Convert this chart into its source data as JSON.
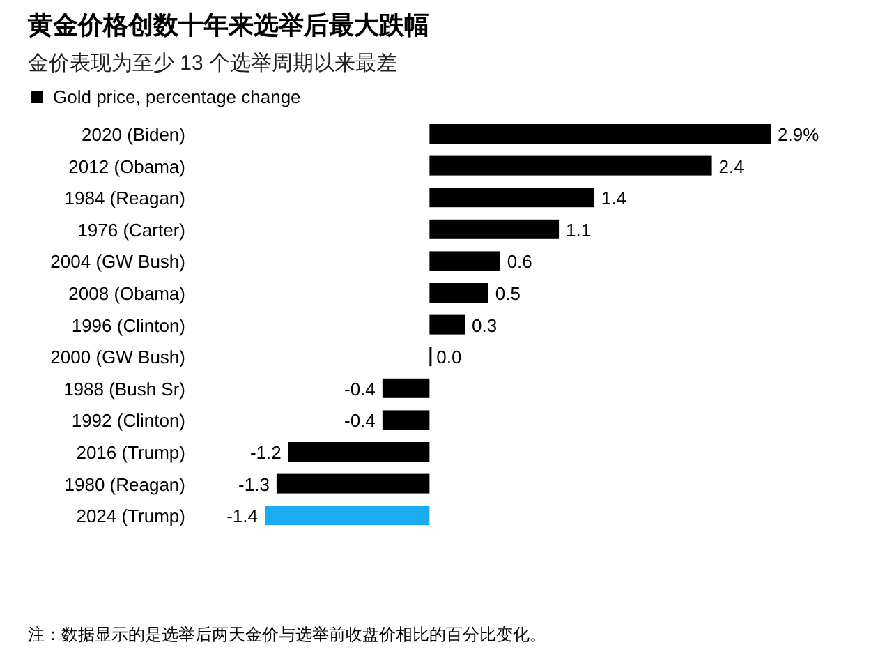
{
  "chart_data": {
    "type": "bar",
    "orientation": "horizontal",
    "title": "黄金价格创数十年来选举后最大跌幅",
    "subtitle": "金价表现为至少 13 个选举周期以来最差",
    "categories": [
      "2020 (Biden)",
      "2012 (Obama)",
      "1984 (Reagan)",
      "1976 (Carter)",
      "2004 (GW Bush)",
      "2008 (Obama)",
      "1996 (Clinton)",
      "2000 (GW Bush)",
      "1988 (Bush Sr)",
      "1992 (Clinton)",
      "2016 (Trump)",
      "1980 (Reagan)",
      "2024 (Trump)"
    ],
    "series": [
      {
        "name": "Gold price, percentage change",
        "color": "#000000",
        "values": [
          2.9,
          2.4,
          1.4,
          1.1,
          0.6,
          0.5,
          0.3,
          0.0,
          -0.4,
          -0.4,
          -1.2,
          -1.3,
          -1.4
        ],
        "colors": [
          "#000000",
          "#000000",
          "#000000",
          "#000000",
          "#000000",
          "#000000",
          "#000000",
          "#000000",
          "#000000",
          "#000000",
          "#000000",
          "#000000",
          "#1aabf0"
        ],
        "value_labels": [
          "2.9%",
          "2.4",
          "1.4",
          "1.1",
          "0.6",
          "0.5",
          "0.3",
          "0.0",
          "-0.4",
          "-0.4",
          "-1.2",
          "-1.3",
          "-1.4"
        ]
      }
    ],
    "legend": "top left",
    "annotations": [
      "注：数据显示的是选举后两天金价与选举前收盘价相比的百分比变化。"
    ]
  }
}
